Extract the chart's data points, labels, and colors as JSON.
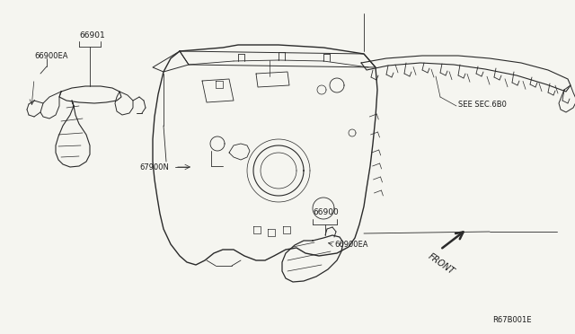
{
  "bg_color": "#f5f5f0",
  "line_color": "#2a2a2a",
  "text_color": "#1a1a1a",
  "fs": 6.0,
  "ref_code": "R67B001E",
  "label_66901": "66901",
  "label_66900EA_top": "66900EA",
  "label_67900N": "67900N",
  "label_66900": "66900",
  "label_66900EA_bot": "66900EA",
  "label_see_sec": "SEE SEC.6B0",
  "label_front": "FRONT"
}
